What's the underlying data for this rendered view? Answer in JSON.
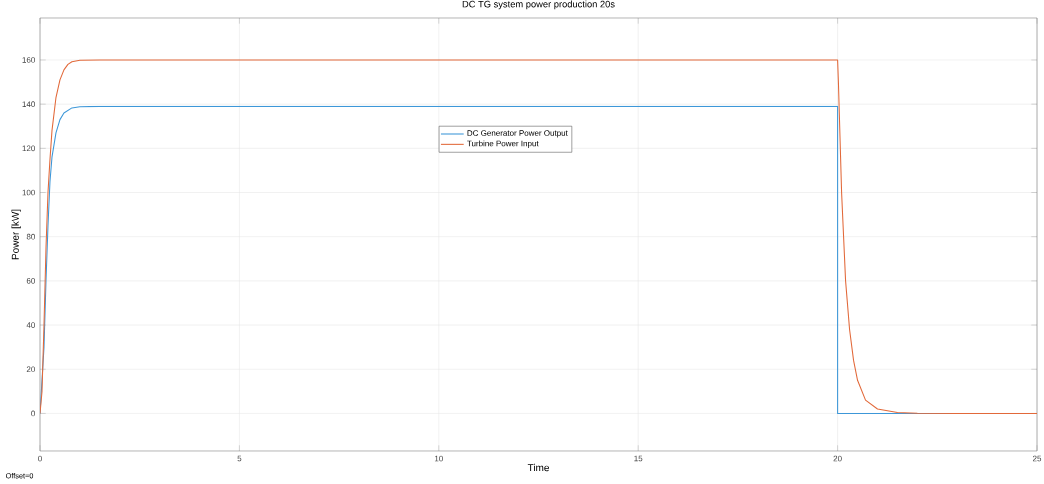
{
  "chart_data": {
    "type": "line",
    "title": "DC TG system power production 20s",
    "xlabel": "Time",
    "ylabel": "Power [kW]",
    "xlim": [
      0,
      25
    ],
    "ylim": [
      -17,
      179
    ],
    "xticks": [
      0,
      5,
      10,
      15,
      20,
      25
    ],
    "yticks": [
      0,
      20,
      40,
      60,
      80,
      100,
      120,
      140,
      160
    ],
    "grid": true,
    "legend": "center",
    "line_style": "solid",
    "marker": "none",
    "annotations": [
      "Offset=0"
    ],
    "series": [
      {
        "name": "DC Generator Power Output",
        "color": "#3d97d8",
        "x": [
          0,
          0.05,
          0.1,
          0.15,
          0.2,
          0.25,
          0.3,
          0.4,
          0.5,
          0.6,
          0.8,
          1.0,
          1.5,
          20,
          20,
          25
        ],
        "values": [
          0,
          null,
          30,
          60,
          85,
          105,
          116,
          127,
          133,
          136,
          138.3,
          138.8,
          139,
          139,
          0,
          0
        ]
      },
      {
        "name": "Turbine Power Input",
        "color": "#e2693a",
        "x": [
          0,
          0.05,
          0.1,
          0.15,
          0.2,
          0.25,
          0.3,
          0.4,
          0.5,
          0.6,
          0.7,
          0.8,
          1.0,
          1.5,
          20,
          20.02,
          20.1,
          20.2,
          20.3,
          20.4,
          20.5,
          20.7,
          21,
          21.5,
          22,
          23,
          25
        ],
        "values": [
          0,
          10,
          40,
          75,
          100,
          115,
          128,
          143,
          151,
          155.5,
          158,
          159.2,
          159.9,
          160,
          160,
          150,
          100,
          60,
          38,
          24,
          15,
          6,
          2,
          0.4,
          0.1,
          0,
          0
        ]
      }
    ]
  }
}
